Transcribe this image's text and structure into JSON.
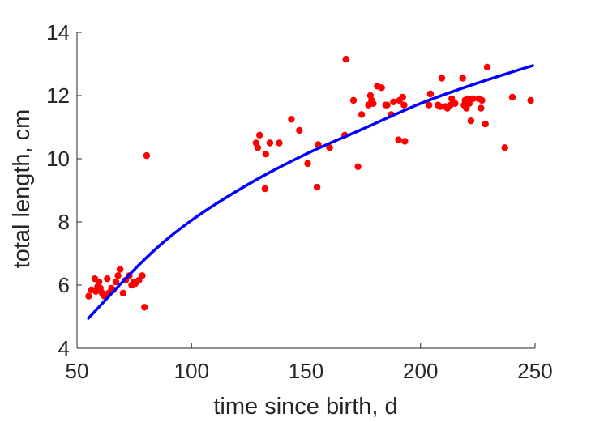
{
  "chart_data": {
    "type": "scatter",
    "title": "",
    "xlabel": "time since birth, d",
    "ylabel": "total length, cm",
    "xlim": [
      50,
      250
    ],
    "ylim": [
      4,
      14
    ],
    "xticks": [
      50,
      100,
      150,
      200,
      250
    ],
    "yticks": [
      4,
      6,
      8,
      10,
      12,
      14
    ],
    "grid": false,
    "box": "off",
    "series": [
      {
        "type": "scatter",
        "color": "#ff0000",
        "x": [
          55.1,
          56.3,
          57.8,
          58.3,
          59.0,
          59.6,
          60.2,
          61.0,
          62.0,
          63.2,
          63.8,
          65.0,
          65.9,
          67.0,
          67.9,
          68.8,
          70.1,
          71.2,
          72.8,
          73.9,
          74.8,
          75.5,
          77.0,
          78.5,
          79.5,
          80.4,
          128.2,
          128.9,
          129.7,
          132.1,
          132.4,
          134.2,
          138.3,
          143.6,
          147.1,
          150.7,
          154.8,
          155.3,
          160.3,
          166.9,
          167.4,
          170.7,
          172.7,
          174.3,
          177.3,
          178.1,
          178.6,
          179.3,
          181.1,
          183.0,
          184.8,
          185.4,
          187.2,
          188.2,
          190.4,
          190.8,
          192.2,
          192.8,
          193.1,
          203.7,
          204.3,
          207.6,
          208.6,
          209.3,
          210.9,
          211.7,
          213.0,
          213.6,
          215.1,
          218.4,
          219.0,
          219.4,
          220.0,
          220.6,
          221.3,
          222.0,
          222.9,
          225.4,
          226.4,
          226.8,
          228.3,
          229.1,
          236.8,
          240.1,
          248.1
        ],
        "y": [
          5.65,
          5.85,
          6.2,
          5.8,
          5.95,
          6.1,
          5.9,
          5.75,
          5.65,
          6.2,
          5.75,
          5.9,
          5.85,
          6.1,
          6.3,
          6.5,
          5.75,
          6.15,
          6.3,
          6.0,
          6.1,
          6.05,
          6.15,
          6.3,
          5.3,
          10.1,
          10.5,
          10.35,
          10.75,
          9.05,
          10.15,
          10.5,
          10.5,
          11.25,
          10.9,
          9.85,
          9.1,
          10.45,
          10.35,
          10.75,
          13.15,
          11.85,
          9.75,
          11.4,
          11.7,
          12.0,
          11.85,
          11.75,
          12.3,
          12.25,
          11.7,
          11.7,
          11.4,
          11.8,
          10.6,
          11.85,
          11.95,
          11.7,
          10.55,
          11.7,
          12.05,
          11.7,
          11.65,
          12.55,
          11.65,
          11.6,
          11.7,
          11.9,
          11.75,
          12.55,
          11.7,
          11.85,
          11.6,
          11.9,
          11.75,
          11.2,
          11.9,
          11.9,
          11.6,
          11.85,
          11.1,
          12.9,
          10.35,
          11.95,
          11.85
        ]
      },
      {
        "type": "line",
        "color": "#0000ff",
        "x": [
          55,
          80,
          100,
          125,
          150,
          175,
          200,
          225,
          249
        ],
        "y": [
          4.95,
          6.85,
          8.05,
          9.2,
          10.15,
          10.95,
          11.75,
          12.4,
          12.95
        ]
      }
    ]
  }
}
